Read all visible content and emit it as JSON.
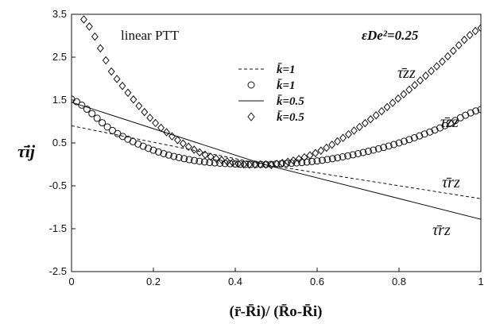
{
  "chart_data": {
    "type": "scatter",
    "title": "",
    "xlabel": "(r̄-R̄i)/ (R̄o-R̄i)",
    "ylabel": "τ̄ij",
    "xlim": [
      0,
      1
    ],
    "ylim": [
      -2.5,
      3.5
    ],
    "x_ticks": [
      "0",
      "0.2",
      "0.4",
      "0.6",
      "0.8",
      "1"
    ],
    "y_ticks": [
      "-2.5",
      "-1.5",
      "-0.5",
      "0.5",
      "1.5",
      "2.5",
      "3.5"
    ],
    "grid": false,
    "legend_position": "center-left",
    "annotations": {
      "model": "linear PTT",
      "parameter": "εDe²=0.25",
      "labels": [
        "τ̄zz",
        "τ̄zz",
        "τ̄rz",
        "τ̄rz"
      ]
    },
    "series": [
      {
        "name": "k̄=1",
        "marker": "dashed-line",
        "x": [
          0,
          0.47,
          1
        ],
        "y": [
          0.9,
          0.0,
          -0.8
        ]
      },
      {
        "name": "k̄=1",
        "marker": "circle",
        "x": [
          0,
          0.1,
          0.2,
          0.3,
          0.4,
          0.47,
          0.5,
          0.6,
          0.7,
          0.8,
          0.9,
          1.0
        ],
        "y": [
          1.52,
          0.79,
          0.33,
          0.09,
          0.01,
          0.0,
          0.01,
          0.08,
          0.25,
          0.5,
          0.85,
          1.28
        ]
      },
      {
        "name": "k̄=0.5",
        "marker": "solid-line",
        "x": [
          0,
          0.47,
          1
        ],
        "y": [
          1.45,
          0.0,
          -1.28
        ]
      },
      {
        "name": "k̄=0.5",
        "marker": "diamond",
        "x": [
          0.03,
          0.1,
          0.2,
          0.3,
          0.4,
          0.47,
          0.5,
          0.6,
          0.7,
          0.8,
          0.9,
          1.0
        ],
        "y": [
          3.38,
          2.12,
          1.01,
          0.34,
          0.03,
          0.0,
          0.01,
          0.28,
          0.85,
          1.55,
          2.35,
          3.18
        ]
      }
    ]
  }
}
